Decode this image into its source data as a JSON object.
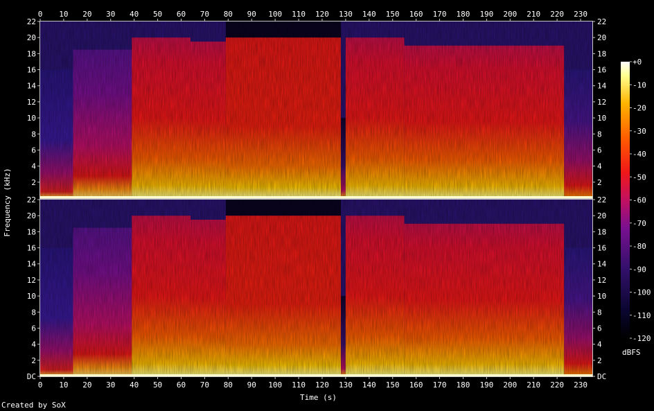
{
  "chart_data": {
    "type": "heatmap",
    "title": "",
    "xlabel": "Time (s)",
    "ylabel": "Frequency (kHz)",
    "colorbar_label": "dBFS",
    "credit": "Created by SoX",
    "x_range": [
      0,
      235
    ],
    "x_ticks": [
      "0",
      "10",
      "20",
      "30",
      "40",
      "50",
      "60",
      "70",
      "80",
      "90",
      "100",
      "110",
      "120",
      "130",
      "140",
      "150",
      "160",
      "170",
      "180",
      "190",
      "200",
      "210",
      "220",
      "230"
    ],
    "channels": [
      {
        "y_ticks": [
          "DC",
          "2",
          "4",
          "6",
          "8",
          "10",
          "12",
          "14",
          "16",
          "18",
          "20",
          "22"
        ]
      },
      {
        "y_ticks": [
          "2",
          "4",
          "6",
          "8",
          "10",
          "12",
          "14",
          "16",
          "18",
          "20",
          "22"
        ]
      }
    ],
    "y_range_khz": [
      0,
      22
    ],
    "colorbar_ticks": [
      "+0",
      "-10",
      "-20",
      "-30",
      "-40",
      "-50",
      "-60",
      "-70",
      "-80",
      "-90",
      "-100",
      "-110",
      "-120"
    ],
    "colorbar_range_db": [
      -120,
      0
    ],
    "segments": [
      {
        "start": 0,
        "end": 14,
        "level": "quiet",
        "cutoff_khz": 16
      },
      {
        "start": 14,
        "end": 39,
        "level": "medium",
        "cutoff_khz": 18.5
      },
      {
        "start": 39,
        "end": 64,
        "level": "loud",
        "cutoff_khz": 20
      },
      {
        "start": 64,
        "end": 79,
        "level": "loud",
        "cutoff_khz": 19.5
      },
      {
        "start": 79,
        "end": 128,
        "level": "very_loud",
        "cutoff_khz": 20
      },
      {
        "start": 128,
        "end": 130,
        "level": "gap",
        "cutoff_khz": 10
      },
      {
        "start": 130,
        "end": 155,
        "level": "loud",
        "cutoff_khz": 20
      },
      {
        "start": 155,
        "end": 223,
        "level": "loud",
        "cutoff_khz": 19
      },
      {
        "start": 223,
        "end": 235,
        "level": "fade",
        "cutoff_khz": 16
      }
    ]
  }
}
